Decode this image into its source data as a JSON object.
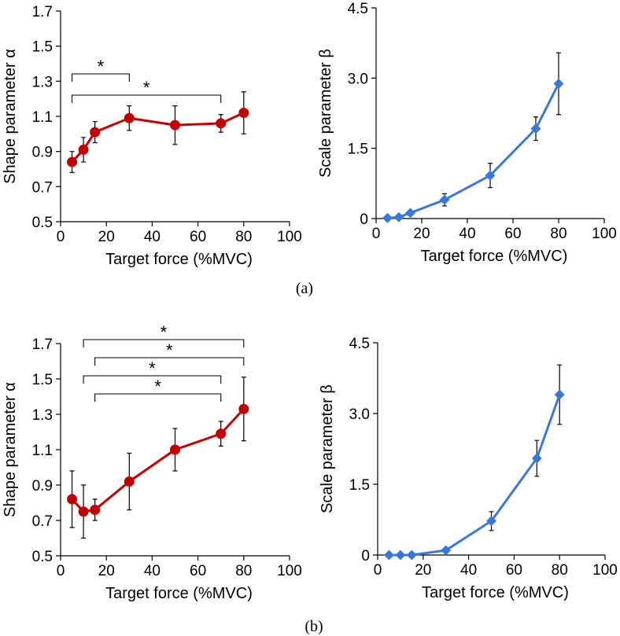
{
  "figure": {
    "colors": {
      "shape": "#c00000",
      "scale": "#3a78d6"
    },
    "captions": [
      "(a)",
      "(b)"
    ]
  },
  "chart_data": [
    {
      "type": "line",
      "panel": "a-left",
      "xlabel": "Target force (%MVC)",
      "ylabel": "Shape parameter α",
      "xlim": [
        0,
        100
      ],
      "ylim": [
        0.5,
        1.7
      ],
      "xticks": [
        "0",
        "20",
        "40",
        "60",
        "80",
        "100"
      ],
      "yticks": [
        "0.5",
        "0.7",
        "0.9",
        "1.1",
        "1.3",
        "1.5",
        "1.7"
      ],
      "marker": "circle",
      "series": [
        {
          "x": [
            5,
            10,
            15,
            30,
            50,
            70,
            80
          ],
          "y": [
            0.84,
            0.91,
            1.01,
            1.09,
            1.05,
            1.06,
            1.12
          ],
          "err": [
            0.06,
            0.07,
            0.06,
            0.07,
            0.11,
            0.05,
            0.12
          ]
        }
      ],
      "significance": [
        {
          "x1": 5,
          "x2": 30,
          "label": "*"
        },
        {
          "x1": 5,
          "x2": 70,
          "label": "*"
        }
      ]
    },
    {
      "type": "line",
      "panel": "a-right",
      "xlabel": "Target force (%MVC)",
      "ylabel": "Scale parameter β",
      "xlim": [
        0,
        100
      ],
      "ylim": [
        0,
        4.5
      ],
      "xticks": [
        "0",
        "20",
        "40",
        "60",
        "80",
        "100"
      ],
      "yticks": [
        "0",
        "1.5",
        "3.0",
        "4.5"
      ],
      "marker": "diamond",
      "series": [
        {
          "x": [
            5,
            10,
            15,
            30,
            50,
            70,
            80
          ],
          "y": [
            0.01,
            0.03,
            0.12,
            0.4,
            0.92,
            1.92,
            2.88
          ],
          "err": [
            0.01,
            0.02,
            0.05,
            0.13,
            0.26,
            0.25,
            0.66
          ]
        }
      ],
      "significance": []
    },
    {
      "type": "line",
      "panel": "b-left",
      "xlabel": "Target force (%MVC)",
      "ylabel": "Shape parameter α",
      "xlim": [
        0,
        100
      ],
      "ylim": [
        0.5,
        1.7
      ],
      "xticks": [
        "0",
        "20",
        "40",
        "60",
        "80",
        "100"
      ],
      "yticks": [
        "0.5",
        "0.7",
        "0.9",
        "1.1",
        "1.3",
        "1.5",
        "1.7"
      ],
      "marker": "circle",
      "series": [
        {
          "x": [
            5,
            10,
            15,
            30,
            50,
            70,
            80
          ],
          "y": [
            0.82,
            0.75,
            0.76,
            0.92,
            1.1,
            1.19,
            1.33
          ],
          "err": [
            0.16,
            0.15,
            0.06,
            0.16,
            0.12,
            0.07,
            0.18
          ]
        }
      ],
      "significance": [
        {
          "x1": 10,
          "x2": 80,
          "label": "*"
        },
        {
          "x1": 15,
          "x2": 80,
          "label": "*"
        },
        {
          "x1": 10,
          "x2": 70,
          "label": "*"
        },
        {
          "x1": 15,
          "x2": 70,
          "label": "*"
        }
      ]
    },
    {
      "type": "line",
      "panel": "b-right",
      "xlabel": "Target force (%MVC)",
      "ylabel": "Scale parameter β",
      "xlim": [
        0,
        100
      ],
      "ylim": [
        0,
        4.5
      ],
      "xticks": [
        "0",
        "20",
        "40",
        "60",
        "80",
        "100"
      ],
      "yticks": [
        "0",
        "1.5",
        "3.0",
        "4.5"
      ],
      "marker": "diamond",
      "series": [
        {
          "x": [
            5,
            10,
            15,
            30,
            50,
            70,
            80
          ],
          "y": [
            0.0,
            0.0,
            0.0,
            0.1,
            0.72,
            2.05,
            3.4
          ],
          "err": [
            0.0,
            0.0,
            0.0,
            0.04,
            0.2,
            0.38,
            0.63
          ]
        }
      ],
      "significance": []
    }
  ]
}
